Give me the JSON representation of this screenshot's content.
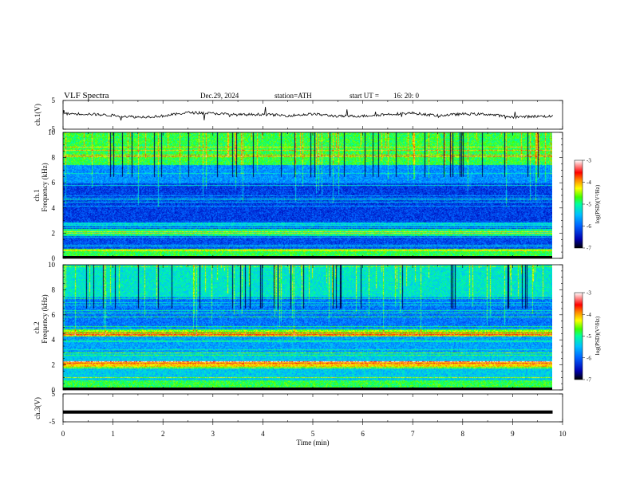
{
  "header": {
    "title": "VLF Spectra",
    "date": "Dec.29, 2024",
    "station": "station=ATH",
    "start": "start UT =",
    "start_time": "16: 20: 0"
  },
  "chart_data": [
    {
      "type": "line",
      "panel": "ch1-waveform",
      "ylabel": "ch.1(V)",
      "ylim": [
        -5,
        5
      ],
      "yticks": [
        "5",
        "-5"
      ],
      "xlim": [
        0,
        10
      ],
      "x_extent_min": 9.8,
      "x": [
        0,
        0.5,
        1,
        1.5,
        2,
        2.5,
        3,
        3.5,
        4,
        4.5,
        5,
        5.5,
        6,
        6.5,
        7,
        7.5,
        8,
        8.5,
        9,
        9.5,
        9.8
      ],
      "values": [
        0.4,
        0.3,
        -0.2,
        -0.8,
        -0.4,
        0.8,
        0.5,
        0.0,
        0.2,
        -0.3,
        0.3,
        -0.5,
        -0.4,
        0.2,
        0.6,
        -0.3,
        0.3,
        0.2,
        -0.8,
        -0.5,
        -0.5
      ]
    },
    {
      "type": "heatmap",
      "panel": "ch1-spectrogram",
      "ylabel": [
        "ch.1",
        "Frequency (kHz)"
      ],
      "ylim": [
        0,
        10
      ],
      "yticks": [
        "0",
        "2",
        "4",
        "6",
        "8",
        "10"
      ],
      "xlim": [
        0,
        10
      ],
      "colorbar": {
        "label": "log(PSD)(V²/Hz)",
        "ticks": [
          "-3",
          "-4",
          "-5",
          "-6",
          "-7"
        ],
        "range": [
          -7,
          -3
        ]
      }
    },
    {
      "type": "heatmap",
      "panel": "ch2-spectrogram",
      "ylabel": [
        "ch.2",
        "Frequency (kHz)"
      ],
      "ylim": [
        0,
        10
      ],
      "yticks": [
        "0",
        "2",
        "4",
        "6",
        "8",
        "10"
      ],
      "xlim": [
        0,
        10
      ],
      "colorbar": {
        "label": "log(PSD)(V²/Hz)",
        "ticks": [
          "-3",
          "-4",
          "-5",
          "-6",
          "-7"
        ],
        "range": [
          -7,
          -3
        ]
      }
    },
    {
      "type": "line",
      "panel": "ch3-waveform",
      "ylabel": "ch.3(V)",
      "ylim": [
        -5,
        5
      ],
      "yticks": [
        "5",
        "-5"
      ],
      "xlim": [
        0,
        10
      ],
      "x": [
        0,
        9.8
      ],
      "values": [
        -1.5,
        -1.5
      ]
    }
  ],
  "xaxis": {
    "label": "Time (min)",
    "ticks": [
      "0",
      "1",
      "2",
      "3",
      "4",
      "5",
      "6",
      "7",
      "8",
      "9",
      "10"
    ]
  },
  "colors": {
    "axis": "#000000",
    "colormap": [
      "#000000",
      "#0000b0",
      "#0060ff",
      "#00c0ff",
      "#00ffa0",
      "#40ff00",
      "#ffff00",
      "#ff8000",
      "#ff0000",
      "#ffffff"
    ]
  }
}
